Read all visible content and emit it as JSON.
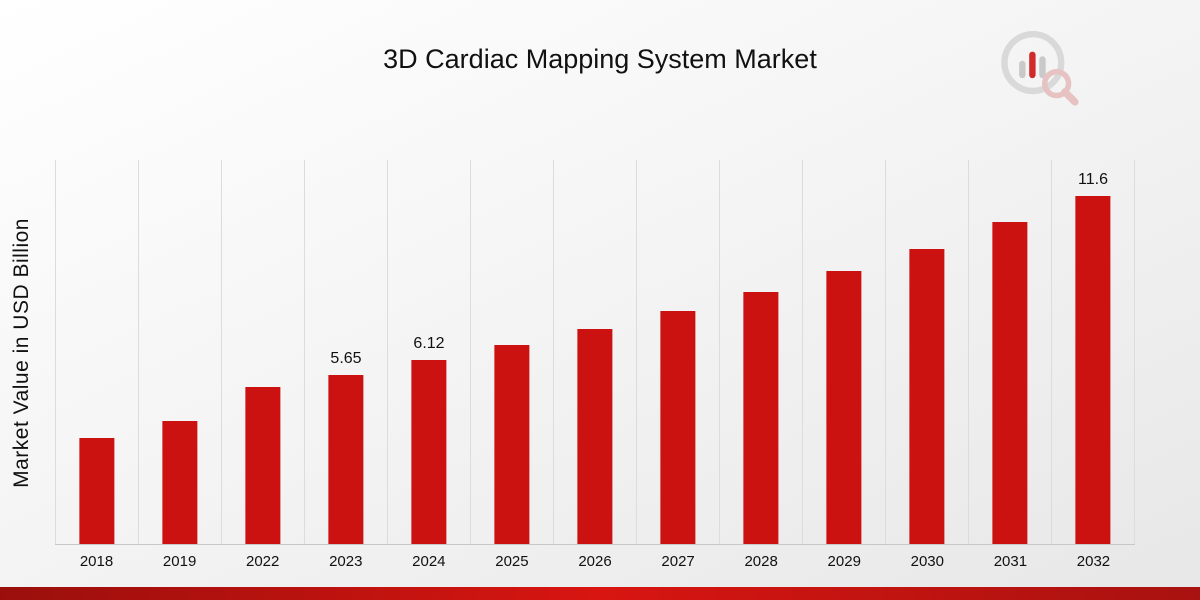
{
  "colors": {
    "bar": "#cc1111",
    "gridline": "#dcdcdc",
    "ribbon_left": "#9a0f0c",
    "ribbon_mid": "#d81511",
    "ribbon_right": "#a81210"
  },
  "logo_icon": "bar-chart-magnifier-logo",
  "chart_data": {
    "type": "bar",
    "title": "3D Cardiac Mapping System Market",
    "ylabel": "Market Value in USD Billion",
    "xlabel": "",
    "categories": [
      "2018",
      "2019",
      "2022",
      "2023",
      "2024",
      "2025",
      "2026",
      "2027",
      "2028",
      "2029",
      "2030",
      "2031",
      "2032"
    ],
    "values": [
      3.55,
      4.1,
      5.25,
      5.65,
      6.12,
      6.62,
      7.17,
      7.76,
      8.4,
      9.09,
      9.84,
      10.72,
      11.6
    ],
    "data_labels": {
      "2023": "5.65",
      "2024": "6.12",
      "2032": "11.6"
    },
    "ylim": [
      0,
      12.8
    ],
    "grid": "vertical",
    "legend": "none",
    "bar_color": "#cc1111"
  }
}
